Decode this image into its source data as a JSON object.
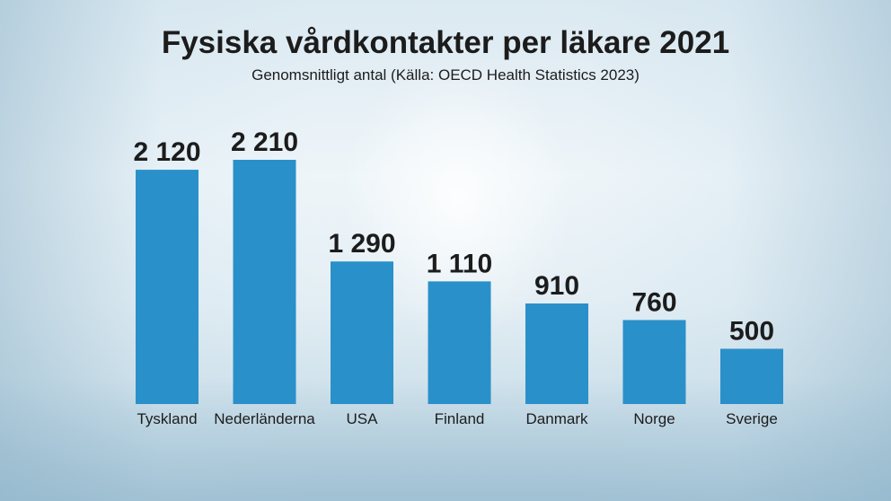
{
  "title": "Fysiska vårdkontakter per läkare 2021",
  "subtitle": "Genomsnittligt antal (Källa: OECD Health Statistics 2023)",
  "colors": {
    "bar": "#2a90c9",
    "text": "#1c1c1c"
  },
  "chart_data": {
    "type": "bar",
    "title": "Fysiska vårdkontakter per läkare 2021",
    "subtitle": "Genomsnittligt antal (Källa: OECD Health Statistics 2023)",
    "categories": [
      "Tyskland",
      "Nederländerna",
      "USA",
      "Finland",
      "Danmark",
      "Norge",
      "Sverige"
    ],
    "values": [
      2120,
      2210,
      1290,
      1110,
      910,
      760,
      500
    ],
    "value_labels": [
      "2 120",
      "2 210",
      "1 290",
      "1 110",
      "910",
      "760",
      "500"
    ],
    "xlabel": "",
    "ylabel": "",
    "ylim": [
      0,
      2210
    ],
    "grid": false,
    "legend": "none"
  }
}
